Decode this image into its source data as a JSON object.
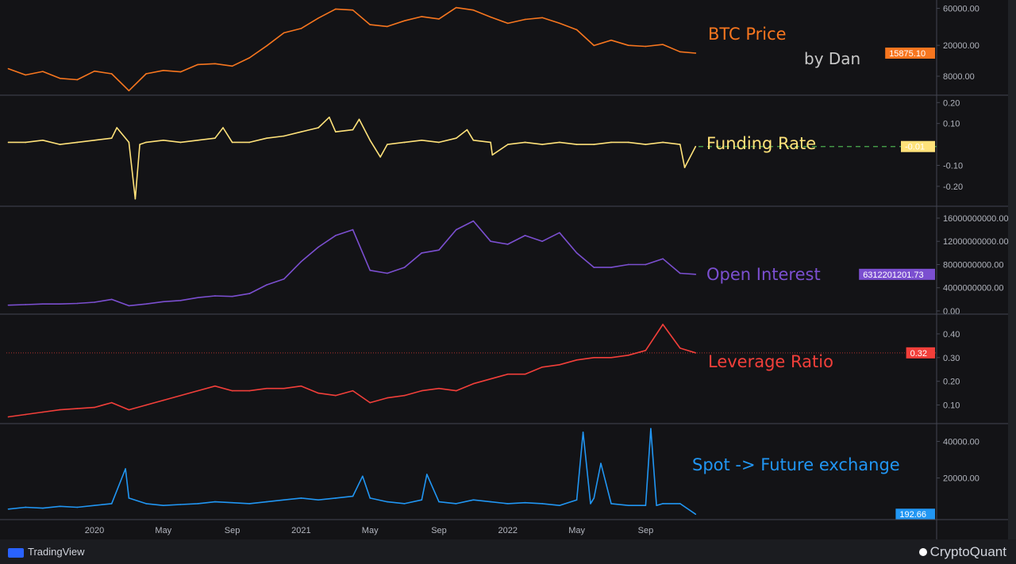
{
  "chart_data": [
    {
      "type": "line",
      "name": "BTC Price",
      "label": "BTC Price",
      "color": "#f7761f",
      "scale": "log",
      "ylim": [
        5000,
        70000
      ],
      "ticks": [
        "60000.00",
        "20000.00",
        "8000.00"
      ],
      "tick_values": [
        60000,
        20000,
        8000
      ],
      "last_value": "15875.10",
      "dates": [
        "2019-08",
        "2019-09",
        "2019-10",
        "2019-11",
        "2019-12",
        "2020-01",
        "2020-02",
        "2020-03",
        "2020-04",
        "2020-05",
        "2020-06",
        "2020-07",
        "2020-08",
        "2020-09",
        "2020-10",
        "2020-11",
        "2020-12",
        "2021-01",
        "2021-02",
        "2021-03",
        "2021-04",
        "2021-05",
        "2021-06",
        "2021-07",
        "2021-08",
        "2021-09",
        "2021-10",
        "2021-11",
        "2021-12",
        "2022-01",
        "2022-02",
        "2022-03",
        "2022-04",
        "2022-05",
        "2022-06",
        "2022-07",
        "2022-08",
        "2022-09",
        "2022-10",
        "2022-11",
        "2022-11-28"
      ],
      "values": [
        10000,
        8300,
        9200,
        7500,
        7200,
        9300,
        8600,
        5200,
        8600,
        9500,
        9100,
        11300,
        11600,
        10800,
        13800,
        19700,
        29000,
        33000,
        45000,
        58800,
        57000,
        37000,
        35000,
        41500,
        47000,
        43800,
        61300,
        57000,
        46300,
        38500,
        43200,
        45500,
        38600,
        31800,
        19900,
        23300,
        20000,
        19400,
        20500,
        16500,
        15875.1
      ]
    },
    {
      "type": "line",
      "name": "Funding Rate",
      "label": "Funding Rate",
      "color": "#ffe27a",
      "ylim": [
        -0.28,
        0.22
      ],
      "ticks": [
        "0.20",
        "0.10",
        "-0.10",
        "-0.20"
      ],
      "tick_values": [
        0.2,
        0.1,
        -0.1,
        -0.2
      ],
      "last_value": "-0.01",
      "reference_line": -0.01,
      "reference_color": "#4caf50",
      "dates": [
        "2019-08",
        "2019-09",
        "2019-10",
        "2019-11",
        "2019-12",
        "2020-01",
        "2020-02",
        "2020-02-10",
        "2020-03",
        "2020-03-12",
        "2020-03-20",
        "2020-04",
        "2020-05",
        "2020-06",
        "2020-07",
        "2020-08",
        "2020-08-15",
        "2020-09",
        "2020-10",
        "2020-11",
        "2020-12",
        "2021-01",
        "2021-02",
        "2021-02-20",
        "2021-03",
        "2021-04",
        "2021-04-12",
        "2021-05",
        "2021-05-19",
        "2021-06",
        "2021-07",
        "2021-08",
        "2021-09",
        "2021-10",
        "2021-10-20",
        "2021-11",
        "2021-12",
        "2021-12-04",
        "2022-01",
        "2022-02",
        "2022-03",
        "2022-04",
        "2022-05",
        "2022-06",
        "2022-07",
        "2022-08",
        "2022-09",
        "2022-10",
        "2022-11",
        "2022-11-09",
        "2022-11-28"
      ],
      "values": [
        0.01,
        0.01,
        0.02,
        0.0,
        0.01,
        0.02,
        0.03,
        0.08,
        0.01,
        -0.26,
        0.0,
        0.01,
        0.02,
        0.01,
        0.02,
        0.03,
        0.08,
        0.01,
        0.01,
        0.03,
        0.04,
        0.06,
        0.08,
        0.13,
        0.06,
        0.07,
        0.12,
        0.02,
        -0.06,
        0.0,
        0.01,
        0.02,
        0.01,
        0.03,
        0.07,
        0.02,
        0.01,
        -0.05,
        0.0,
        0.01,
        0.0,
        0.01,
        0.0,
        0.0,
        0.01,
        0.01,
        0.0,
        0.01,
        0.0,
        -0.11,
        -0.01
      ]
    },
    {
      "type": "line",
      "name": "Open Interest",
      "label": "Open Interest",
      "color": "#7b4fd0",
      "ylim": [
        0,
        17500000000
      ],
      "ticks": [
        "16000000000.00",
        "12000000000.00",
        "8000000000.00",
        "4000000000.00",
        "0.00"
      ],
      "tick_values": [
        16000000000,
        12000000000,
        8000000000,
        4000000000,
        0
      ],
      "last_value": "6312201201.73",
      "dates": [
        "2019-08",
        "2019-09",
        "2019-10",
        "2019-11",
        "2019-12",
        "2020-01",
        "2020-02",
        "2020-03",
        "2020-04",
        "2020-05",
        "2020-06",
        "2020-07",
        "2020-08",
        "2020-09",
        "2020-10",
        "2020-11",
        "2020-12",
        "2021-01",
        "2021-02",
        "2021-03",
        "2021-04",
        "2021-05",
        "2021-06",
        "2021-07",
        "2021-08",
        "2021-09",
        "2021-10",
        "2021-11",
        "2021-12",
        "2022-01",
        "2022-02",
        "2022-03",
        "2022-04",
        "2022-05",
        "2022-06",
        "2022-07",
        "2022-08",
        "2022-09",
        "2022-10",
        "2022-11",
        "2022-11-28"
      ],
      "values": [
        1000000000,
        1100000000,
        1200000000,
        1200000000,
        1300000000,
        1500000000,
        2000000000,
        900000000,
        1200000000,
        1600000000,
        1800000000,
        2300000000,
        2600000000,
        2500000000,
        3000000000,
        4500000000,
        5500000000,
        8500000000,
        11000000000,
        13000000000,
        14000000000,
        7000000000,
        6500000000,
        7500000000,
        10000000000,
        10500000000,
        14000000000,
        15500000000,
        12000000000,
        11500000000,
        13000000000,
        12000000000,
        13500000000,
        10000000000,
        7500000000,
        7500000000,
        8000000000,
        8000000000,
        9000000000,
        6500000000,
        6312201201.73
      ]
    },
    {
      "type": "line",
      "name": "Leverage Ratio",
      "label": "Leverage Ratio",
      "color": "#f23f3a",
      "ylim": [
        0.035,
        0.47
      ],
      "ticks": [
        "0.40",
        "0.30",
        "0.20",
        "0.10"
      ],
      "tick_values": [
        0.4,
        0.3,
        0.2,
        0.1
      ],
      "last_value": "0.32",
      "reference_line": 0.32,
      "dates": [
        "2019-08",
        "2019-09",
        "2019-10",
        "2019-11",
        "2019-12",
        "2020-01",
        "2020-02",
        "2020-03",
        "2020-04",
        "2020-05",
        "2020-06",
        "2020-07",
        "2020-08",
        "2020-09",
        "2020-10",
        "2020-11",
        "2020-12",
        "2021-01",
        "2021-02",
        "2021-03",
        "2021-04",
        "2021-05",
        "2021-06",
        "2021-07",
        "2021-08",
        "2021-09",
        "2021-10",
        "2021-11",
        "2021-12",
        "2022-01",
        "2022-02",
        "2022-03",
        "2022-04",
        "2022-05",
        "2022-06",
        "2022-07",
        "2022-08",
        "2022-09",
        "2022-10",
        "2022-11",
        "2022-11-28"
      ],
      "values": [
        0.05,
        0.06,
        0.07,
        0.08,
        0.085,
        0.09,
        0.11,
        0.08,
        0.1,
        0.12,
        0.14,
        0.16,
        0.18,
        0.16,
        0.16,
        0.17,
        0.17,
        0.18,
        0.15,
        0.14,
        0.16,
        0.11,
        0.13,
        0.14,
        0.16,
        0.17,
        0.16,
        0.19,
        0.21,
        0.23,
        0.23,
        0.26,
        0.27,
        0.29,
        0.3,
        0.3,
        0.31,
        0.33,
        0.44,
        0.34,
        0.32
      ]
    },
    {
      "type": "line",
      "name": "Spot -> Future exchange",
      "label": "Spot -> Future exchange",
      "color": "#2196f3",
      "ylim": [
        -1000,
        48000
      ],
      "ticks": [
        "40000.00",
        "20000.00"
      ],
      "tick_values": [
        40000,
        20000
      ],
      "last_value": "192.66",
      "dates": [
        "2019-08",
        "2019-09",
        "2019-10",
        "2019-11",
        "2019-12",
        "2020-01",
        "2020-02",
        "2020-02-25",
        "2020-03",
        "2020-04",
        "2020-05",
        "2020-06",
        "2020-07",
        "2020-08",
        "2020-09",
        "2020-10",
        "2020-11",
        "2020-12",
        "2021-01",
        "2021-02",
        "2021-03",
        "2021-04",
        "2021-04-18",
        "2021-05",
        "2021-06",
        "2021-07",
        "2021-08",
        "2021-08-10",
        "2021-09",
        "2021-10",
        "2021-11",
        "2021-12",
        "2022-01",
        "2022-02",
        "2022-03",
        "2022-04",
        "2022-05",
        "2022-05-12",
        "2022-05-25",
        "2022-06",
        "2022-06-13",
        "2022-07",
        "2022-08",
        "2022-09",
        "2022-09-10",
        "2022-09-20",
        "2022-10",
        "2022-11",
        "2022-11-28"
      ],
      "values": [
        3000,
        4000,
        3500,
        4500,
        4000,
        5000,
        6000,
        25000,
        9000,
        6000,
        5000,
        5500,
        6000,
        7000,
        6500,
        6000,
        7000,
        8000,
        9000,
        8000,
        9000,
        10000,
        21000,
        9000,
        7000,
        6000,
        8000,
        22000,
        7000,
        6000,
        8000,
        7000,
        6000,
        6500,
        6000,
        5000,
        8000,
        45000,
        6000,
        9000,
        28000,
        6000,
        5000,
        5000,
        47000,
        5000,
        6000,
        6000,
        192.66
      ]
    }
  ],
  "time_axis": {
    "labels": [
      "2020",
      "May",
      "Sep",
      "2021",
      "May",
      "Sep",
      "2022",
      "May",
      "Sep"
    ],
    "dates": [
      "2020-01",
      "2020-05",
      "2020-09",
      "2021-01",
      "2021-05",
      "2021-09",
      "2022-01",
      "2022-05",
      "2022-09"
    ]
  },
  "annotation_by": "by Dan",
  "footer": {
    "left": "TradingView",
    "right": "CryptoQuant"
  },
  "colors": {
    "background": "#131316",
    "grid_line": "#434651",
    "axis_text": "#b2b5be"
  }
}
